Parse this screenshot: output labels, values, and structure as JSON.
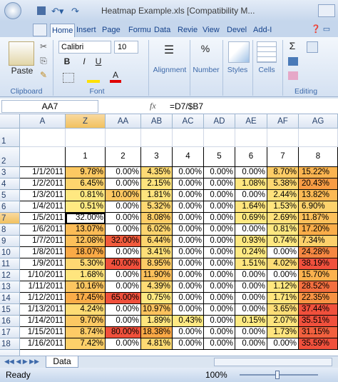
{
  "title_bar": {
    "title": "Heatmap Example.xls  [Compatibility M..."
  },
  "ribbon": {
    "tabs": [
      "Home",
      "Insert",
      "Page",
      "Formu",
      "Data",
      "Revie",
      "View",
      "Devel",
      "Add-I"
    ],
    "clipboard": {
      "paste": "Paste",
      "label": "Clipboard"
    },
    "font": {
      "font_name": "Calibri",
      "font_size": "10",
      "bold": "B",
      "italic": "I",
      "underline": "U",
      "color": "A",
      "label": "Font"
    },
    "alignment": "Alignment",
    "number": {
      "symbol": "%",
      "label": "Number"
    },
    "styles": "Styles",
    "cells": "Cells",
    "editing": {
      "sum": "Σ",
      "label": "Editing"
    }
  },
  "formula_bar": {
    "name_box": "AA7",
    "fx": "fx",
    "formula": "=D7/$B7"
  },
  "sheet": {
    "columns": [
      "A",
      "Z",
      "AA",
      "AB",
      "AC",
      "AD",
      "AE",
      "AF",
      "AG"
    ],
    "row_numbers": [
      1,
      2,
      3,
      4,
      5,
      6,
      7,
      8,
      9,
      10,
      11,
      12,
      13,
      14,
      15,
      16,
      17,
      18
    ],
    "header_values": [
      1,
      2,
      3,
      4,
      5,
      6,
      7,
      8
    ],
    "rows": [
      [
        "1/1/2011",
        "9.78%",
        "0.00%",
        "4.35%",
        "0.00%",
        "0.00%",
        "0.00%",
        "8.70%",
        "15.22%"
      ],
      [
        "1/2/2011",
        "6.45%",
        "0.00%",
        "2.15%",
        "0.00%",
        "0.00%",
        "1.08%",
        "5.38%",
        "20.43%"
      ],
      [
        "1/3/2011",
        "0.81%",
        "10.00%",
        "1.81%",
        "0.00%",
        "0.00%",
        "0.00%",
        "2.44%",
        "13.82%"
      ],
      [
        "1/4/2011",
        "0.51%",
        "0.00%",
        "5.32%",
        "0.00%",
        "0.00%",
        "1.64%",
        "1.53%",
        "6.90%"
      ],
      [
        "1/5/2011",
        "32.00%",
        "0.00%",
        "8.08%",
        "0.00%",
        "0.00%",
        "0.69%",
        "2.69%",
        "11.87%"
      ],
      [
        "1/6/2011",
        "13.07%",
        "0.00%",
        "6.02%",
        "0.00%",
        "0.00%",
        "0.00%",
        "0.81%",
        "17.20%"
      ],
      [
        "1/7/2011",
        "12.08%",
        "32.00%",
        "6.44%",
        "0.00%",
        "0.00%",
        "0.93%",
        "0.74%",
        "7.34%"
      ],
      [
        "1/8/2011",
        "18.07%",
        "0.00%",
        "3.41%",
        "0.00%",
        "0.00%",
        "0.24%",
        "0.00%",
        "24.28%"
      ],
      [
        "1/9/2011",
        "5.30%",
        "40.00%",
        "8.95%",
        "0.00%",
        "0.00%",
        "1.51%",
        "4.02%",
        "38.19%"
      ],
      [
        "1/10/2011",
        "1.68%",
        "0.00%",
        "11.90%",
        "0.00%",
        "0.00%",
        "0.00%",
        "0.00%",
        "15.70%"
      ],
      [
        "1/11/2011",
        "10.16%",
        "0.00%",
        "4.39%",
        "0.00%",
        "0.00%",
        "0.00%",
        "1.12%",
        "28.52%"
      ],
      [
        "1/12/2011",
        "17.45%",
        "65.00%",
        "0.75%",
        "0.00%",
        "0.00%",
        "0.00%",
        "1.71%",
        "22.35%"
      ],
      [
        "1/13/2011",
        "4.24%",
        "0.00%",
        "10.97%",
        "0.00%",
        "0.00%",
        "0.00%",
        "3.65%",
        "37.44%"
      ],
      [
        "1/14/2011",
        "9.70%",
        "0.00%",
        "1.89%",
        "0.43%",
        "0.00%",
        "0.15%",
        "2.07%",
        "35.51%"
      ],
      [
        "1/15/2011",
        "8.74%",
        "80.00%",
        "18.38%",
        "0.00%",
        "0.00%",
        "0.00%",
        "1.73%",
        "31.15%"
      ],
      [
        "1/16/2011",
        "7.42%",
        "0.00%",
        "4.81%",
        "0.00%",
        "0.00%",
        "0.00%",
        "0.00%",
        "35.59%"
      ]
    ],
    "sheet_tab": "Data"
  },
  "status_bar": {
    "status": "Ready",
    "zoom": "100%"
  }
}
